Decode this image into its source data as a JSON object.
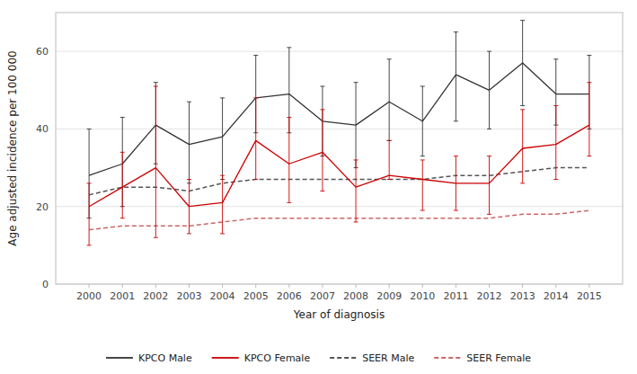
{
  "chart_data": {
    "type": "line",
    "xlabel": "Year of diagnosis",
    "ylabel": "Age adjusted incidence per 100 000",
    "x": [
      2000,
      2001,
      2002,
      2003,
      2004,
      2005,
      2006,
      2007,
      2008,
      2009,
      2010,
      2011,
      2012,
      2013,
      2014,
      2015
    ],
    "xlim": [
      1999,
      2016
    ],
    "xticks": [
      2000,
      2001,
      2002,
      2003,
      2004,
      2005,
      2006,
      2007,
      2008,
      2009,
      2010,
      2011,
      2012,
      2013,
      2014,
      2015
    ],
    "ylim": [
      0,
      70
    ],
    "yticks": [
      0,
      20,
      40,
      60
    ],
    "grid": true,
    "legend": "bottom",
    "series": [
      {
        "name": "KPCO Male",
        "color": "#333333",
        "line_style": "solid",
        "values": [
          28,
          31,
          41,
          36,
          38,
          48,
          49,
          42,
          41,
          47,
          42,
          54,
          50,
          57,
          49,
          49
        ],
        "error_low": [
          17,
          20,
          31,
          26,
          27,
          39,
          39,
          33,
          30,
          37,
          33,
          42,
          40,
          46,
          41,
          40
        ],
        "error_high": [
          40,
          43,
          52,
          47,
          48,
          59,
          61,
          51,
          52,
          58,
          51,
          65,
          60,
          68,
          58,
          59
        ]
      },
      {
        "name": "KPCO Female",
        "color": "#cc0000",
        "line_style": "solid",
        "values": [
          20,
          25,
          30,
          20,
          21,
          37,
          31,
          34,
          25,
          28,
          27,
          26,
          26,
          35,
          36,
          41
        ],
        "error_low": [
          10,
          17,
          12,
          13,
          13,
          27,
          21,
          24,
          16,
          27,
          19,
          19,
          18,
          26,
          27,
          33
        ],
        "error_high": [
          26,
          34,
          51,
          27,
          28,
          48,
          43,
          45,
          32,
          37,
          32,
          33,
          33,
          45,
          46,
          52
        ]
      },
      {
        "name": "SEER Male",
        "color": "#555555",
        "line_style": "dashed",
        "values": [
          23,
          25,
          25,
          24,
          26,
          27,
          27,
          27,
          27,
          27,
          27,
          28,
          28,
          29,
          30,
          30
        ]
      },
      {
        "name": "SEER Female",
        "color": "#cc6666",
        "line_style": "dashed",
        "values": [
          14,
          15,
          15,
          15,
          16,
          17,
          17,
          17,
          17,
          17,
          17,
          17,
          17,
          18,
          18,
          19
        ]
      }
    ]
  }
}
